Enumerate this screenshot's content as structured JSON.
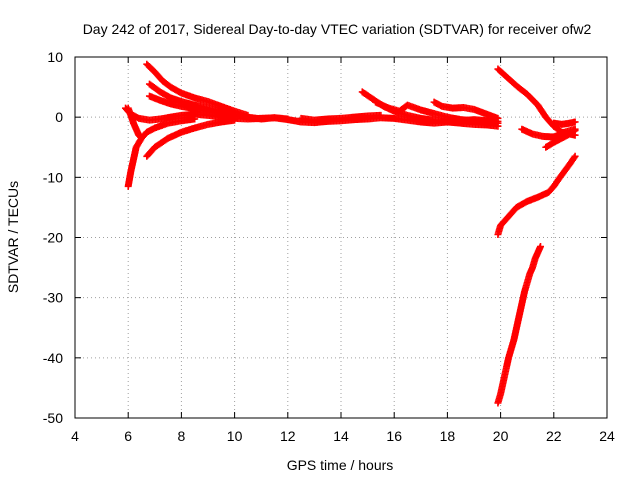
{
  "chart_data": {
    "type": "scatter",
    "title": "Day 242 of 2017, Sidereal Day-to-day VTEC variation (SDTVAR) for receiver ofw2",
    "xlabel": "GPS time / hours",
    "ylabel": "SDTVAR / TECUs",
    "xlim": [
      4,
      24
    ],
    "ylim": [
      -50,
      10
    ],
    "xticks": [
      4,
      6,
      8,
      10,
      12,
      14,
      16,
      18,
      20,
      22,
      24
    ],
    "yticks": [
      -50,
      -40,
      -30,
      -20,
      -10,
      0,
      10
    ],
    "grid": true,
    "marker": "plus",
    "color": "#ff0000",
    "series": [
      {
        "values": [
          [
            5.9,
            1.5
          ],
          [
            6.1,
            0.5
          ],
          [
            6.4,
            -0.2
          ],
          [
            6.8,
            -0.5
          ],
          [
            7.2,
            -0.3
          ],
          [
            7.6,
            0.0
          ],
          [
            8.0,
            0.3
          ],
          [
            8.5,
            0.5
          ],
          [
            9.0,
            0.3
          ],
          [
            9.5,
            0.0
          ],
          [
            10.0,
            -0.2
          ],
          [
            10.5,
            -0.3
          ],
          [
            11.0,
            -0.2
          ],
          [
            11.5,
            -0.1
          ],
          [
            12.0,
            -0.3
          ]
        ]
      },
      {
        "values": [
          [
            6.0,
            -11.5
          ],
          [
            6.1,
            -9.0
          ],
          [
            6.2,
            -7.0
          ],
          [
            6.3,
            -5.0
          ],
          [
            6.5,
            -3.5
          ],
          [
            6.7,
            -2.5
          ],
          [
            7.0,
            -1.8
          ],
          [
            7.5,
            -1.0
          ],
          [
            8.0,
            -0.6
          ],
          [
            8.5,
            -0.3
          ]
        ]
      },
      {
        "values": [
          [
            6.0,
            1.5
          ],
          [
            6.1,
            0.3
          ],
          [
            6.2,
            -1.0
          ],
          [
            6.3,
            -2.0
          ],
          [
            6.4,
            -3.0
          ],
          [
            6.5,
            -3.5
          ]
        ]
      },
      {
        "values": [
          [
            6.7,
            -6.5
          ],
          [
            7.0,
            -5.0
          ],
          [
            7.5,
            -3.5
          ],
          [
            8.0,
            -2.5
          ],
          [
            8.5,
            -1.8
          ],
          [
            9.0,
            -1.2
          ],
          [
            9.5,
            -0.8
          ],
          [
            10.0,
            -0.5
          ]
        ]
      },
      {
        "values": [
          [
            6.7,
            8.8
          ],
          [
            7.0,
            7.5
          ],
          [
            7.3,
            6.0
          ],
          [
            7.6,
            5.0
          ],
          [
            8.0,
            4.0
          ],
          [
            8.5,
            3.2
          ],
          [
            9.0,
            2.6
          ],
          [
            9.5,
            1.8
          ],
          [
            10.0,
            1.0
          ],
          [
            10.5,
            0.3
          ]
        ]
      },
      {
        "values": [
          [
            6.8,
            5.5
          ],
          [
            7.2,
            4.2
          ],
          [
            7.6,
            3.2
          ],
          [
            8.0,
            2.6
          ],
          [
            8.5,
            2.0
          ],
          [
            9.0,
            1.5
          ],
          [
            9.5,
            0.9
          ],
          [
            10.0,
            0.4
          ],
          [
            10.5,
            0.0
          ]
        ]
      },
      {
        "values": [
          [
            6.8,
            3.5
          ],
          [
            7.2,
            2.8
          ],
          [
            7.6,
            2.2
          ],
          [
            8.0,
            1.8
          ],
          [
            8.5,
            1.4
          ],
          [
            9.0,
            1.0
          ],
          [
            9.5,
            0.6
          ],
          [
            10.0,
            0.2
          ]
        ]
      },
      {
        "values": [
          [
            10.5,
            0.0
          ],
          [
            11.0,
            -0.3
          ],
          [
            11.5,
            -0.1
          ],
          [
            12.0,
            -0.4
          ],
          [
            12.5,
            -0.8
          ],
          [
            13.0,
            -0.9
          ],
          [
            13.5,
            -0.7
          ],
          [
            14.0,
            -0.6
          ],
          [
            14.5,
            -0.4
          ],
          [
            15.0,
            -0.3
          ],
          [
            15.5,
            -0.1
          ],
          [
            16.0,
            -0.2
          ],
          [
            16.5,
            -0.5
          ],
          [
            17.0,
            -0.8
          ],
          [
            17.5,
            -1.0
          ],
          [
            18.0,
            -0.8
          ],
          [
            18.5,
            -0.6
          ],
          [
            19.0,
            -0.4
          ],
          [
            19.5,
            -0.6
          ],
          [
            19.9,
            -0.7
          ]
        ]
      },
      {
        "values": [
          [
            12.5,
            -0.2
          ],
          [
            13.0,
            -0.5
          ],
          [
            13.5,
            -0.3
          ],
          [
            14.0,
            -0.2
          ],
          [
            14.5,
            0.0
          ],
          [
            15.0,
            0.2
          ],
          [
            15.5,
            0.3
          ]
        ]
      },
      {
        "values": [
          [
            14.8,
            4.2
          ],
          [
            15.2,
            3.0
          ],
          [
            15.6,
            1.8
          ],
          [
            16.0,
            1.0
          ],
          [
            16.5,
            0.3
          ],
          [
            17.0,
            -0.2
          ],
          [
            17.5,
            -0.5
          ],
          [
            18.0,
            -0.8
          ],
          [
            18.5,
            -1.0
          ],
          [
            19.0,
            -1.2
          ],
          [
            19.5,
            -1.3
          ],
          [
            19.9,
            -1.5
          ]
        ]
      },
      {
        "values": [
          [
            15.3,
            2.5
          ],
          [
            15.8,
            1.5
          ],
          [
            16.2,
            1.0
          ],
          [
            16.5,
            2.0
          ],
          [
            17.0,
            1.2
          ],
          [
            17.5,
            0.6
          ],
          [
            18.0,
            0.0
          ],
          [
            18.5,
            -0.4
          ],
          [
            19.0,
            -0.6
          ],
          [
            19.5,
            -0.8
          ],
          [
            19.9,
            -1.0
          ]
        ]
      },
      {
        "values": [
          [
            17.5,
            2.5
          ],
          [
            17.8,
            1.8
          ],
          [
            18.2,
            1.5
          ],
          [
            18.6,
            1.6
          ],
          [
            19.0,
            1.3
          ],
          [
            19.3,
            0.8
          ],
          [
            19.6,
            0.3
          ],
          [
            19.9,
            -0.2
          ]
        ]
      },
      {
        "values": [
          [
            19.9,
            8.0
          ],
          [
            20.2,
            6.8
          ],
          [
            20.6,
            5.2
          ],
          [
            21.0,
            3.8
          ],
          [
            21.4,
            2.0
          ],
          [
            21.7,
            0.0
          ],
          [
            22.0,
            -1.5
          ],
          [
            22.3,
            -2.5
          ],
          [
            22.6,
            -2.8
          ],
          [
            22.8,
            -3.0
          ]
        ]
      },
      {
        "values": [
          [
            20.8,
            -2.0
          ],
          [
            21.2,
            -2.8
          ],
          [
            21.6,
            -3.2
          ],
          [
            22.0,
            -3.3
          ],
          [
            22.4,
            -2.5
          ],
          [
            22.8,
            -2.0
          ]
        ]
      },
      {
        "values": [
          [
            21.7,
            -5.0
          ],
          [
            22.0,
            -4.2
          ],
          [
            22.3,
            -3.5
          ],
          [
            22.6,
            -2.8
          ],
          [
            22.8,
            -2.2
          ]
        ]
      },
      {
        "values": [
          [
            22.0,
            -1.0
          ],
          [
            22.3,
            -1.2
          ],
          [
            22.6,
            -1.0
          ],
          [
            22.8,
            -0.8
          ]
        ]
      },
      {
        "values": [
          [
            19.9,
            -19.5
          ],
          [
            20.0,
            -18.0
          ],
          [
            20.2,
            -17.0
          ],
          [
            20.4,
            -16.0
          ],
          [
            20.6,
            -15.0
          ],
          [
            21.0,
            -14.0
          ],
          [
            21.4,
            -13.3
          ],
          [
            21.8,
            -12.5
          ],
          [
            22.0,
            -11.5
          ],
          [
            22.2,
            -10.2
          ],
          [
            22.4,
            -9.0
          ],
          [
            22.6,
            -7.8
          ],
          [
            22.8,
            -6.5
          ]
        ]
      },
      {
        "values": [
          [
            19.9,
            -47.5
          ],
          [
            20.0,
            -46.0
          ],
          [
            20.1,
            -44.0
          ],
          [
            20.2,
            -42.0
          ],
          [
            20.3,
            -40.0
          ],
          [
            20.4,
            -38.5
          ],
          [
            20.5,
            -37.0
          ],
          [
            20.6,
            -35.0
          ],
          [
            20.7,
            -33.0
          ],
          [
            20.8,
            -31.0
          ],
          [
            20.9,
            -29.0
          ],
          [
            21.0,
            -27.5
          ],
          [
            21.1,
            -26.0
          ],
          [
            21.2,
            -25.0
          ],
          [
            21.3,
            -23.5
          ],
          [
            21.4,
            -22.5
          ],
          [
            21.5,
            -21.5
          ]
        ]
      }
    ]
  }
}
